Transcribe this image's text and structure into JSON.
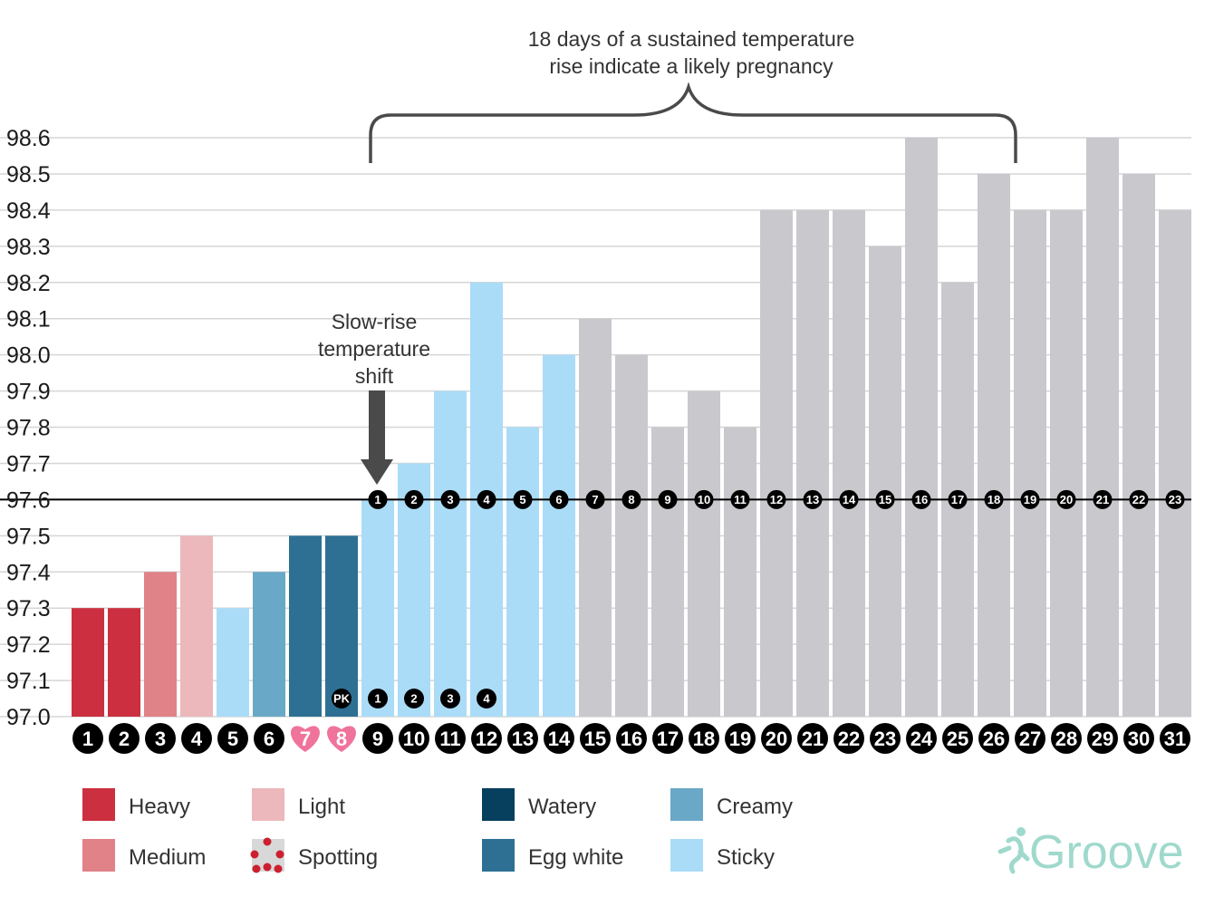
{
  "chart_data": {
    "type": "bar",
    "ylim": [
      97.0,
      98.6
    ],
    "yticks": [
      "98.6",
      "98.5",
      "98.4",
      "98.3",
      "98.2",
      "98.1",
      "98.0",
      "97.9",
      "97.8",
      "97.7",
      "97.6",
      "97.5",
      "97.4",
      "97.3",
      "97.2",
      "97.1",
      "97.0"
    ],
    "baseline": 97.6,
    "categories": [
      "1",
      "2",
      "3",
      "4",
      "5",
      "6",
      "7",
      "8",
      "9",
      "10",
      "11",
      "12",
      "13",
      "14",
      "15",
      "16",
      "17",
      "18",
      "19",
      "20",
      "21",
      "22",
      "23",
      "24",
      "25",
      "26",
      "27",
      "28",
      "29",
      "30",
      "31"
    ],
    "values": [
      97.3,
      97.3,
      97.4,
      97.5,
      97.3,
      97.4,
      97.5,
      97.5,
      97.6,
      97.7,
      97.9,
      98.2,
      97.8,
      98.0,
      98.1,
      98.0,
      97.8,
      97.9,
      97.8,
      98.4,
      98.4,
      98.4,
      98.3,
      98.6,
      98.2,
      98.5,
      98.4,
      98.4,
      98.6,
      98.5,
      98.4
    ],
    "bar_types": [
      "heavy",
      "heavy",
      "medium",
      "light",
      "sticky",
      "creamy",
      "egg_white",
      "egg_white",
      "sticky",
      "sticky",
      "sticky",
      "sticky",
      "sticky",
      "sticky",
      "none",
      "none",
      "none",
      "none",
      "none",
      "none",
      "none",
      "none",
      "none",
      "none",
      "none",
      "none",
      "none",
      "none",
      "none",
      "none",
      "none"
    ],
    "day_marker_types": [
      "normal",
      "normal",
      "normal",
      "normal",
      "normal",
      "normal",
      "heart",
      "heart",
      "normal",
      "normal",
      "normal",
      "normal",
      "normal",
      "normal",
      "normal",
      "normal",
      "normal",
      "normal",
      "normal",
      "normal",
      "normal",
      "normal",
      "normal",
      "normal",
      "normal",
      "normal",
      "normal",
      "normal",
      "normal",
      "normal",
      "normal"
    ],
    "sustained_rise_start_day": 9,
    "sustained_rise_labels": [
      "1",
      "2",
      "3",
      "4",
      "5",
      "6",
      "7",
      "8",
      "9",
      "10",
      "11",
      "12",
      "13",
      "14",
      "15",
      "16",
      "17",
      "18",
      "19",
      "20",
      "21",
      "22",
      "23"
    ],
    "peak_markers": [
      {
        "day": 8,
        "label": "PK"
      },
      {
        "day": 9,
        "label": "1"
      },
      {
        "day": 10,
        "label": "2"
      },
      {
        "day": 11,
        "label": "3"
      },
      {
        "day": 12,
        "label": "4"
      }
    ],
    "annotations": {
      "brace_lines": [
        "18 days of a sustained temperature",
        "rise indicate a likely pregnancy"
      ],
      "brace_from_day": 9,
      "brace_to_day": 27,
      "arrow_lines": [
        "Slow-rise",
        "temperature",
        "shift"
      ],
      "arrow_day": 9
    },
    "colors": {
      "heavy": "#cc2f3f",
      "medium": "#e08288",
      "light": "#ecb8bb",
      "spotting": "#cc2030",
      "watery": "#073f5e",
      "egg_white": "#2e7093",
      "creamy": "#6aa8c8",
      "sticky": "#aadcf7",
      "none": "#c9c8cd",
      "heart": "#f0739c",
      "marker": "#000000",
      "baseline": "#000000",
      "grid": "#d6d6d6",
      "annotation": "#333333",
      "arrow": "#4a4a4a"
    },
    "legend": [
      {
        "key": "heavy",
        "label": "Heavy"
      },
      {
        "key": "medium",
        "label": "Medium"
      },
      {
        "key": "light",
        "label": "Light"
      },
      {
        "key": "spotting",
        "label": "Spotting"
      },
      {
        "key": "watery",
        "label": "Watery"
      },
      {
        "key": "egg_white",
        "label": "Egg white"
      },
      {
        "key": "creamy",
        "label": "Creamy"
      },
      {
        "key": "sticky",
        "label": "Sticky"
      }
    ],
    "logo": "Groove",
    "logo_color": "#9fd9cc"
  }
}
